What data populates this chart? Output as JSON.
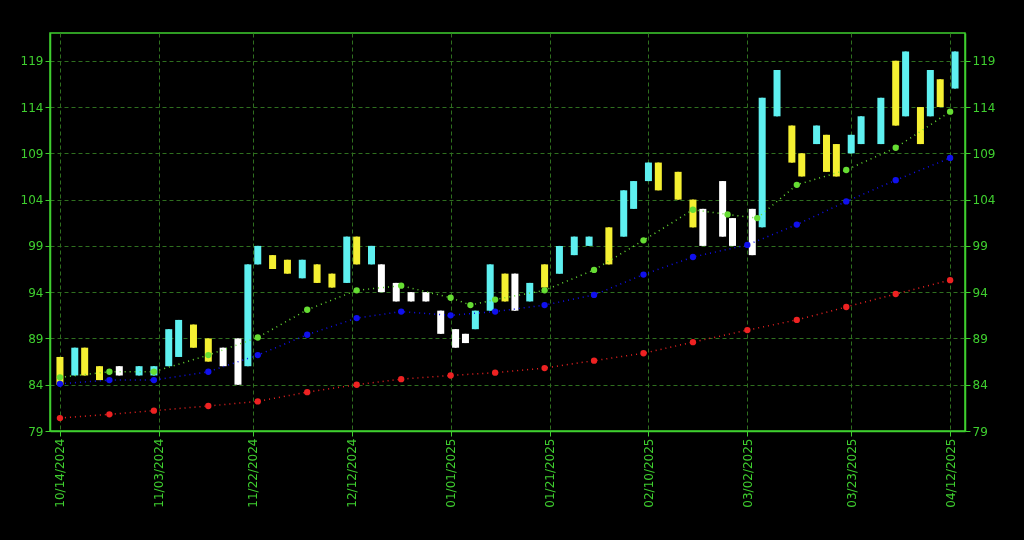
{
  "chart_data": {
    "type": "candlestick",
    "x": [
      "2024-10-14",
      "2024-10-17",
      "2024-10-19",
      "2024-10-22",
      "2024-10-26",
      "2024-10-30",
      "2024-11-02",
      "2024-11-05",
      "2024-11-07",
      "2024-11-10",
      "2024-11-13",
      "2024-11-16",
      "2024-11-19",
      "2024-11-21",
      "2024-11-23",
      "2024-11-26",
      "2024-11-29",
      "2024-12-02",
      "2024-12-05",
      "2024-12-08",
      "2024-12-11",
      "2024-12-13",
      "2024-12-16",
      "2024-12-18",
      "2024-12-21",
      "2024-12-24",
      "2024-12-27",
      "2024-12-30",
      "2025-01-02",
      "2025-01-04",
      "2025-01-06",
      "2025-01-09",
      "2025-01-12",
      "2025-01-14",
      "2025-01-17",
      "2025-01-20",
      "2025-01-23",
      "2025-01-26",
      "2025-01-29",
      "2025-02-02",
      "2025-02-05",
      "2025-02-07",
      "2025-02-10",
      "2025-02-12",
      "2025-02-16",
      "2025-02-19",
      "2025-02-21",
      "2025-02-25",
      "2025-02-27",
      "2025-03-03",
      "2025-03-05",
      "2025-03-08",
      "2025-03-11",
      "2025-03-13",
      "2025-03-16",
      "2025-03-18",
      "2025-03-20",
      "2025-03-23",
      "2025-03-25",
      "2025-03-29",
      "2025-04-01",
      "2025-04-03",
      "2025-04-06",
      "2025-04-08",
      "2025-04-10",
      "2025-04-13"
    ],
    "ohlc": [
      [
        87,
        87,
        84,
        84
      ],
      [
        85,
        88,
        85,
        88
      ],
      [
        88,
        88,
        85,
        85
      ],
      [
        86,
        86,
        84.5,
        84.5
      ],
      [
        86,
        86,
        85,
        85
      ],
      [
        85,
        86,
        85,
        86
      ],
      [
        85,
        86,
        85,
        86
      ],
      [
        86,
        90,
        86,
        90
      ],
      [
        87,
        91,
        87,
        91
      ],
      [
        90.5,
        90.5,
        88,
        88
      ],
      [
        89,
        89,
        86.5,
        86.5
      ],
      [
        88,
        88,
        86,
        86
      ],
      [
        89,
        89,
        84,
        84
      ],
      [
        86,
        97,
        86,
        97
      ],
      [
        97,
        99,
        97,
        99
      ],
      [
        98,
        98,
        96.5,
        96.5
      ],
      [
        97.5,
        97.5,
        96,
        96
      ],
      [
        95.5,
        97.5,
        95.5,
        97.5
      ],
      [
        97,
        97,
        95,
        95
      ],
      [
        96,
        96,
        94.5,
        94.5
      ],
      [
        95,
        100,
        95,
        100
      ],
      [
        100,
        100,
        97,
        97
      ],
      [
        97,
        99,
        97,
        99
      ],
      [
        97,
        97,
        94,
        94
      ],
      [
        95,
        95,
        93,
        93
      ],
      [
        94,
        94,
        93,
        93
      ],
      [
        94,
        94,
        93,
        93
      ],
      [
        92,
        92,
        89.5,
        89.5
      ],
      [
        90,
        90,
        88,
        88
      ],
      [
        89.5,
        89.5,
        88.5,
        88.5
      ],
      [
        90,
        92,
        90,
        92
      ],
      [
        92,
        97,
        92,
        97
      ],
      [
        96,
        96,
        93,
        93
      ],
      [
        96,
        96,
        92,
        92
      ],
      [
        93,
        95,
        93,
        95
      ],
      [
        97,
        97,
        94.5,
        94.5
      ],
      [
        96,
        99,
        96,
        99
      ],
      [
        98,
        100,
        98,
        100
      ],
      [
        99,
        100,
        99,
        100
      ],
      [
        101,
        101,
        97,
        97
      ],
      [
        100,
        105,
        100,
        105
      ],
      [
        103,
        106,
        103,
        106
      ],
      [
        106,
        108,
        106,
        108
      ],
      [
        108,
        108,
        105,
        105
      ],
      [
        107,
        107,
        104,
        104
      ],
      [
        104,
        104,
        101,
        101
      ],
      [
        103,
        103,
        99,
        99
      ],
      [
        106,
        106,
        100,
        100
      ],
      [
        102,
        102,
        99,
        99
      ],
      [
        103,
        103,
        98,
        98
      ],
      [
        101,
        115,
        101,
        115
      ],
      [
        113,
        118,
        113,
        118
      ],
      [
        112,
        112,
        108,
        108
      ],
      [
        109,
        109,
        106.5,
        106.5
      ],
      [
        110,
        112,
        110,
        112
      ],
      [
        111,
        111,
        107,
        107
      ],
      [
        110,
        110,
        106.5,
        106.5
      ],
      [
        109,
        111,
        109,
        111
      ],
      [
        110,
        113,
        110,
        113
      ],
      [
        110,
        115,
        110,
        115
      ],
      [
        119,
        119,
        112,
        112
      ],
      [
        113,
        120,
        113,
        120
      ],
      [
        114,
        114,
        110,
        110
      ],
      [
        113,
        118,
        113,
        118
      ],
      [
        117,
        117,
        114,
        114
      ],
      [
        116,
        120,
        116,
        120
      ]
    ],
    "colors": [
      "#f5f032",
      "#5ef0f0",
      "#f5f032",
      "#f5f032",
      "#ffffff",
      "#5ef0f0",
      "#5ef0f0",
      "#5ef0f0",
      "#5ef0f0",
      "#f5f032",
      "#f5f032",
      "#ffffff",
      "#ffffff",
      "#5ef0f0",
      "#5ef0f0",
      "#f5f032",
      "#f5f032",
      "#5ef0f0",
      "#f5f032",
      "#f5f032",
      "#5ef0f0",
      "#f5f032",
      "#5ef0f0",
      "#ffffff",
      "#ffffff",
      "#ffffff",
      "#ffffff",
      "#ffffff",
      "#ffffff",
      "#ffffff",
      "#5ef0f0",
      "#5ef0f0",
      "#f5f032",
      "#ffffff",
      "#5ef0f0",
      "#f5f032",
      "#5ef0f0",
      "#5ef0f0",
      "#5ef0f0",
      "#f5f032",
      "#5ef0f0",
      "#5ef0f0",
      "#5ef0f0",
      "#f5f032",
      "#f5f032",
      "#f5f032",
      "#ffffff",
      "#ffffff",
      "#ffffff",
      "#ffffff",
      "#5ef0f0",
      "#5ef0f0",
      "#f5f032",
      "#f5f032",
      "#5ef0f0",
      "#f5f032",
      "#f5f032",
      "#5ef0f0",
      "#5ef0f0",
      "#5ef0f0",
      "#f5f032",
      "#5ef0f0",
      "#f5f032",
      "#5ef0f0",
      "#f5f032",
      "#5ef0f0"
    ],
    "series": [
      {
        "type": "line",
        "color": "#66dd33",
        "x": [
          "2024-10-14",
          "2024-10-24",
          "2024-11-02",
          "2024-11-13",
          "2024-11-23",
          "2024-12-03",
          "2024-12-13",
          "2024-12-22",
          "2025-01-01",
          "2025-01-05",
          "2025-01-10",
          "2025-01-20",
          "2025-01-30",
          "2025-02-09",
          "2025-02-19",
          "2025-02-26",
          "2025-03-04",
          "2025-03-12",
          "2025-03-22",
          "2025-04-01",
          "2025-04-12"
        ],
        "values": [
          84.8,
          85.4,
          85.4,
          87.2,
          89.1,
          92.1,
          94.2,
          94.7,
          93.4,
          92.6,
          93.2,
          94.2,
          96.4,
          99.6,
          102.9,
          102.4,
          102.0,
          105.6,
          107.2,
          109.6,
          113.5
        ]
      },
      {
        "type": "line",
        "color": "#1010ee",
        "x": [
          "2024-10-14",
          "2024-10-24",
          "2024-11-02",
          "2024-11-13",
          "2024-11-23",
          "2024-12-03",
          "2024-12-13",
          "2024-12-22",
          "2025-01-01",
          "2025-01-10",
          "2025-01-20",
          "2025-01-30",
          "2025-02-09",
          "2025-02-19",
          "2025-03-02",
          "2025-03-12",
          "2025-03-22",
          "2025-04-01",
          "2025-04-12"
        ],
        "values": [
          84.1,
          84.5,
          84.5,
          85.4,
          87.2,
          89.4,
          91.2,
          91.9,
          91.5,
          91.9,
          92.6,
          93.7,
          95.9,
          97.8,
          99.1,
          101.3,
          103.8,
          106.1,
          108.5
        ]
      },
      {
        "type": "line",
        "color": "#ee2222",
        "x": [
          "2024-10-14",
          "2024-10-24",
          "2024-11-02",
          "2024-11-13",
          "2024-11-23",
          "2024-12-03",
          "2024-12-13",
          "2024-12-22",
          "2025-01-01",
          "2025-01-10",
          "2025-01-20",
          "2025-01-30",
          "2025-02-09",
          "2025-02-19",
          "2025-03-02",
          "2025-03-12",
          "2025-03-22",
          "2025-04-01",
          "2025-04-12"
        ],
        "values": [
          80.4,
          80.8,
          81.2,
          81.7,
          82.2,
          83.2,
          84.0,
          84.6,
          85.0,
          85.3,
          85.8,
          86.6,
          87.4,
          88.6,
          89.9,
          91.0,
          92.4,
          93.8,
          95.3
        ]
      }
    ],
    "xlim": [
      "2024-10-13",
      "2025-04-14"
    ],
    "xticks": [
      {
        "value": "2024-10-14",
        "label": "10/14/2024"
      },
      {
        "value": "2024-11-03",
        "label": "11/03/2024"
      },
      {
        "value": "2024-11-22",
        "label": "11/22/2024"
      },
      {
        "value": "2024-12-12",
        "label": "12/12/2024"
      },
      {
        "value": "2025-01-01",
        "label": "01/01/2025"
      },
      {
        "value": "2025-01-21",
        "label": "01/21/2025"
      },
      {
        "value": "2025-02-10",
        "label": "02/10/2025"
      },
      {
        "value": "2025-03-02",
        "label": "03/02/2025"
      },
      {
        "value": "2025-03-23",
        "label": "03/23/2025"
      },
      {
        "value": "2025-04-12",
        "label": "04/12/2025"
      }
    ],
    "ylim": [
      79,
      122
    ],
    "yticks": [
      79,
      84,
      89,
      94,
      99,
      104,
      109,
      114,
      119
    ],
    "y2lim": [
      79,
      122
    ],
    "y2ticks": [
      79,
      84,
      89,
      94,
      99,
      104,
      109,
      114,
      119
    ],
    "grid": true,
    "marker": "circle",
    "line_style": "dotted"
  }
}
